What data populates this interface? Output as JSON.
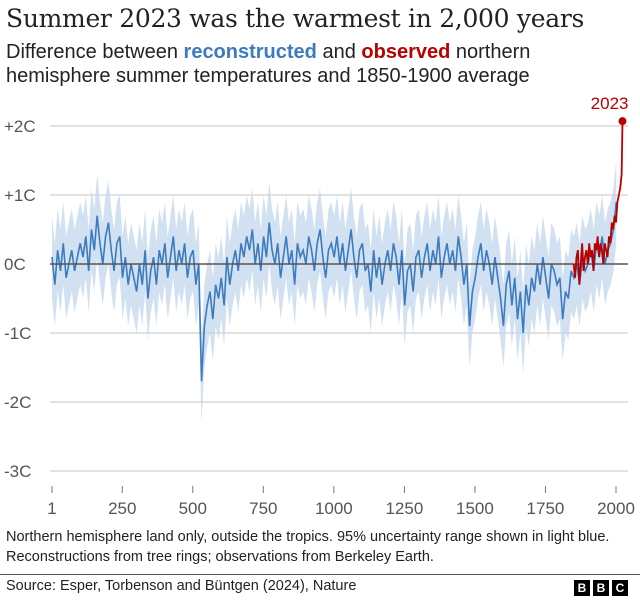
{
  "header": {
    "title": "Summer 2023 was the warmest in 2,000 years",
    "subtitle_pre": "Difference between ",
    "subtitle_recon": "reconstructed",
    "subtitle_mid": " and ",
    "subtitle_obs": "observed",
    "subtitle_post": " northern hemisphere summer temperatures and 1850-1900 average"
  },
  "footer": {
    "note": "Northern hemisphere land only, outside the tropics. 95% uncertainty range shown in light blue. Reconstructions from tree rings; observations from Berkeley Earth.",
    "source": "Source: Esper, Torbenson and Büntgen (2024), Nature",
    "logo": [
      "B",
      "B",
      "C"
    ]
  },
  "colors": {
    "reconstructed": "#3c7bbf",
    "uncertainty": "#c6daee",
    "observed": "#b80000",
    "zero_line": "#555555",
    "grid": "#d8d8d8"
  },
  "chart_data": {
    "type": "line",
    "xlim": [
      1,
      2023
    ],
    "ylim": [
      -3,
      2.2
    ],
    "grid": true,
    "x_ticks": [
      1,
      250,
      500,
      750,
      1000,
      1250,
      1500,
      1750,
      2000
    ],
    "x_tick_labels": [
      "1",
      "250",
      "500",
      "750",
      "1000",
      "1250",
      "1500",
      "1750",
      "2000"
    ],
    "y_ticks": [
      2,
      1,
      0,
      -1,
      -2,
      -3
    ],
    "y_tick_labels": [
      "+2C",
      "+1C",
      "0C",
      "-1C",
      "-2C",
      "-3C"
    ],
    "annotation": {
      "label": "2023",
      "x": 2023,
      "y": 2.07
    },
    "reconstructed": {
      "x_start": 1,
      "x_step": 10,
      "uncertainty_95_halfwidth": 0.6,
      "values": [
        0.1,
        -0.3,
        0.2,
        -0.1,
        0.3,
        -0.2,
        0.0,
        0.2,
        -0.1,
        0.1,
        0.3,
        0.1,
        0.4,
        -0.1,
        0.5,
        0.2,
        0.7,
        0.3,
        0.0,
        0.4,
        0.6,
        0.2,
        -0.1,
        0.3,
        0.4,
        -0.2,
        0.1,
        -0.3,
        0.0,
        -0.2,
        -0.4,
        0.0,
        -0.3,
        0.2,
        -0.5,
        -0.1,
        0.1,
        -0.3,
        0.2,
        0.0,
        0.3,
        -0.2,
        0.1,
        0.4,
        -0.1,
        0.2,
        0.0,
        0.3,
        -0.2,
        0.1,
        0.2,
        -0.3,
        0.0,
        -1.7,
        -0.9,
        -0.6,
        -0.4,
        -0.8,
        -0.3,
        -0.5,
        -0.2,
        -0.6,
        0.1,
        -0.3,
        0.0,
        0.2,
        -0.1,
        0.3,
        0.1,
        0.4,
        0.2,
        0.5,
        0.0,
        0.3,
        -0.1,
        0.4,
        0.1,
        0.6,
        0.2,
        0.0,
        0.3,
        -0.2,
        0.1,
        0.4,
        0.0,
        0.2,
        -0.3,
        0.3,
        0.1,
        0.2,
        0.0,
        0.4,
        0.2,
        -0.1,
        0.3,
        0.5,
        0.1,
        -0.2,
        0.2,
        0.3,
        0.1,
        0.4,
        0.0,
        0.3,
        -0.1,
        0.2,
        0.5,
        0.1,
        -0.2,
        0.2,
        0.3,
        -0.1,
        0.0,
        -0.4,
        0.2,
        -0.2,
        0.1,
        -0.3,
        0.0,
        0.2,
        -0.1,
        0.3,
        0.1,
        -0.3,
        0.2,
        -0.6,
        -0.1,
        0.0,
        -0.4,
        0.1,
        0.2,
        -0.2,
        0.1,
        0.3,
        -0.1,
        0.2,
        0.0,
        0.4,
        -0.2,
        0.1,
        0.3,
        0.0,
        0.2,
        -0.1,
        0.4,
        0.1,
        -0.3,
        0.0,
        -0.9,
        -0.4,
        -0.2,
        0.1,
        0.3,
        -0.1,
        0.2,
        0.0,
        -0.3,
        0.1,
        -0.2,
        -0.5,
        -0.9,
        -0.3,
        -0.1,
        -0.6,
        -0.2,
        -0.8,
        -0.4,
        -1.0,
        -0.3,
        -0.6,
        -0.2,
        -0.4,
        0.0,
        -0.3,
        0.1,
        -0.2,
        -0.5,
        0.0,
        -0.1,
        -0.3,
        -0.2,
        -0.8,
        -0.4,
        -0.5,
        -0.1,
        -0.2,
        0.0,
        -0.3,
        0.1,
        -0.1,
        0.0,
        0.2,
        -0.1,
        0.3,
        0.1,
        0.4,
        0.0,
        0.2,
        0.3,
        0.5,
        0.9
      ]
    },
    "observed": {
      "x": [
        1850,
        1855,
        1860,
        1865,
        1870,
        1875,
        1880,
        1885,
        1890,
        1895,
        1900,
        1905,
        1910,
        1915,
        1920,
        1925,
        1930,
        1935,
        1940,
        1945,
        1950,
        1955,
        1960,
        1965,
        1970,
        1975,
        1980,
        1985,
        1990,
        1995,
        2000,
        2005,
        2010,
        2015,
        2020,
        2023
      ],
      "values": [
        0.0,
        -0.2,
        0.1,
        0.2,
        -0.3,
        0.0,
        0.3,
        -0.1,
        0.1,
        0.2,
        0.0,
        0.3,
        0.1,
        0.2,
        -0.1,
        0.3,
        0.2,
        0.4,
        0.1,
        0.3,
        0.2,
        0.0,
        0.3,
        0.2,
        0.1,
        0.4,
        0.3,
        0.6,
        0.5,
        0.7,
        0.6,
        0.9,
        1.0,
        1.1,
        1.3,
        2.07
      ]
    }
  }
}
